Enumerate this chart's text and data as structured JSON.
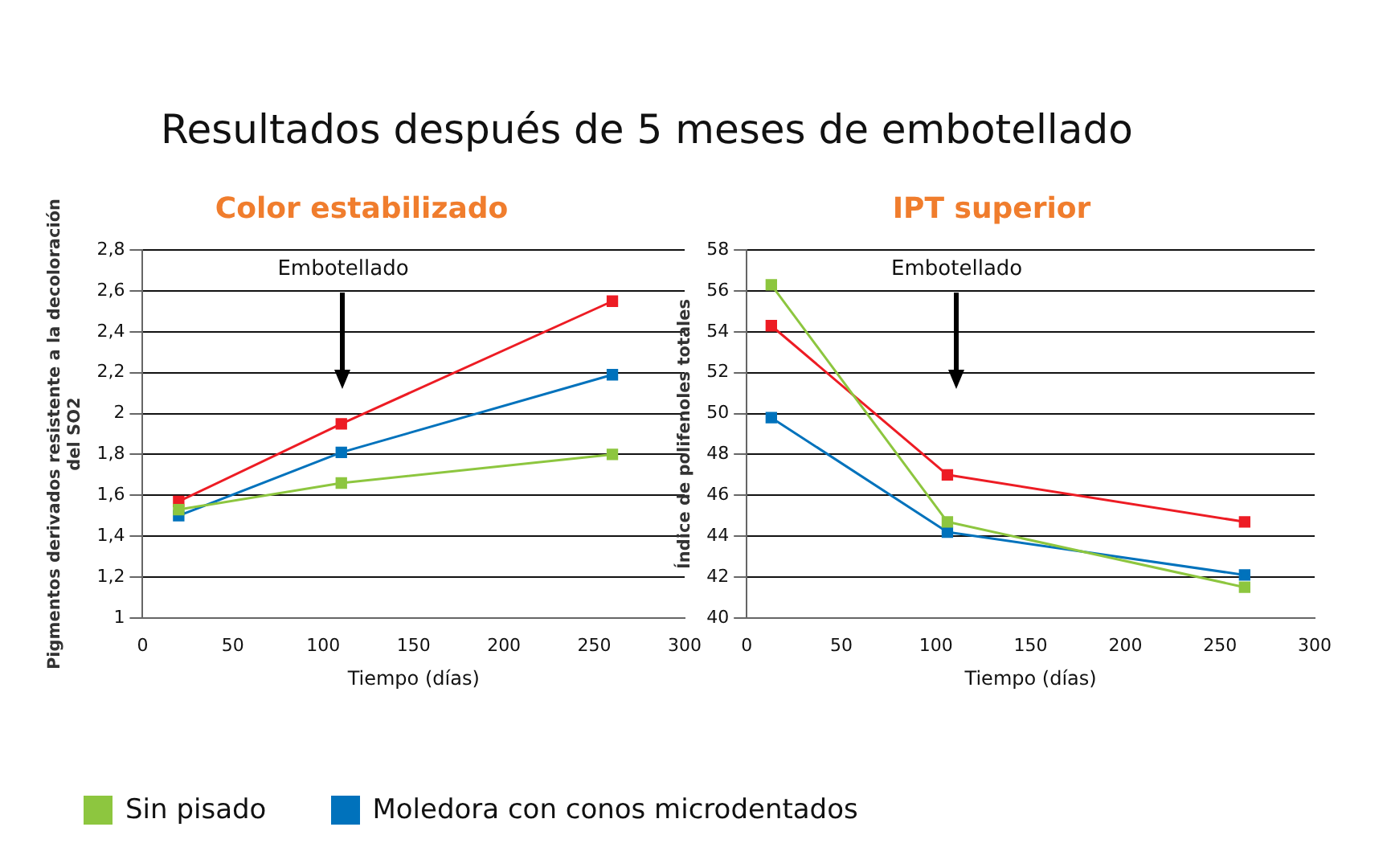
{
  "chart_data": [
    {
      "type": "line",
      "title": "Color estabilizado",
      "xlabel": "Tiempo (días)",
      "ylabel": "Pigmentos derivados resistente a la decoloración del SO2",
      "x": [
        20,
        110,
        260
      ],
      "series": [
        {
          "name": "Sin pisado",
          "color": "#8dc63f",
          "values": [
            1.53,
            1.66,
            1.8
          ]
        },
        {
          "name": "Moledora con conos microdentados",
          "color": "#0072bc",
          "values": [
            1.5,
            1.81,
            2.19
          ]
        },
        {
          "color": "#ed1c24",
          "values": [
            1.57,
            1.95,
            2.55
          ]
        }
      ],
      "xlim": [
        0,
        300
      ],
      "xticks": [
        0,
        50,
        100,
        150,
        200,
        250,
        300
      ],
      "ylim": [
        1,
        2.8
      ],
      "yticks": [
        1,
        {
          "value": 1.2,
          "label": "1,2"
        },
        {
          "value": 1.4,
          "label": "1,4"
        },
        {
          "value": 1.6,
          "label": "1,6"
        },
        {
          "value": 1.8,
          "label": "1,8"
        },
        2,
        {
          "value": 2.2,
          "label": "2,2"
        },
        {
          "value": 2.4,
          "label": "2,4"
        },
        {
          "value": 2.6,
          "label": "2,6"
        },
        {
          "value": 2.8,
          "label": "2,8"
        }
      ],
      "grid": "y",
      "marker": "square",
      "line_style": "solid",
      "legend": "bottom",
      "annotations": [
        "Resultados después de 5 meses de embotellado",
        "Embotellado"
      ]
    },
    {
      "type": "line",
      "title": "IPT superior",
      "xlabel": "Tiempo (días)",
      "ylabel": "Índice de polifenoles totales",
      "x": [
        13,
        106,
        263
      ],
      "series": [
        {
          "name": "Sin pisado",
          "color": "#8dc63f",
          "values": [
            56.3,
            44.7,
            41.5
          ]
        },
        {
          "name": "Moledora con conos microdentados",
          "color": "#0072bc",
          "values": [
            49.8,
            44.2,
            42.1
          ]
        },
        {
          "color": "#ed1c24",
          "values": [
            54.3,
            47,
            44.7
          ]
        }
      ],
      "xlim": [
        0,
        300
      ],
      "xticks": [
        0,
        50,
        100,
        150,
        200,
        250,
        300
      ],
      "ylim": [
        40,
        58
      ],
      "yticks": [
        40,
        42,
        44,
        46,
        48,
        50,
        52,
        54,
        56,
        58
      ],
      "grid": "y",
      "marker": "square",
      "line_style": "solid",
      "annotations": [
        "Embotellado"
      ]
    }
  ]
}
